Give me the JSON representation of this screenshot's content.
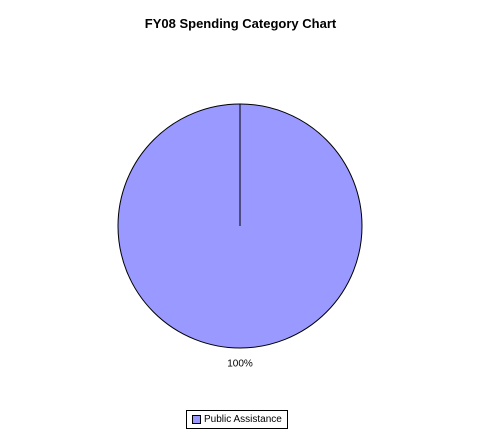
{
  "chart_data": {
    "type": "pie",
    "title": "FY08 Spending Category Chart",
    "categories": [
      "Public Assistance"
    ],
    "values": [
      100
    ],
    "data_labels": [
      "100%"
    ],
    "colors": [
      "#9999ff"
    ],
    "legend_placement": "bottom",
    "grid": false
  }
}
